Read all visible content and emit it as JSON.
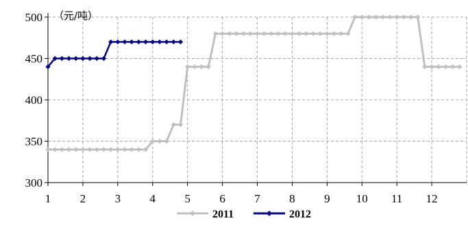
{
  "chart_data": {
    "type": "line",
    "unit_label": "（元/吨）",
    "xlabel": "",
    "ylabel": "",
    "x_ticks": [
      "1",
      "2",
      "3",
      "4",
      "5",
      "6",
      "7",
      "8",
      "9",
      "10",
      "11",
      "12"
    ],
    "y_ticks": [
      "300",
      "350",
      "400",
      "450",
      "500"
    ],
    "xlim": [
      1,
      13
    ],
    "ylim": [
      300,
      500
    ],
    "grid": true,
    "legend_position": "bottom",
    "series": [
      {
        "name": "2011",
        "color": "#c0c0c0",
        "marker": "diamond",
        "x": [
          1,
          1.2,
          1.4,
          1.6,
          1.8,
          2,
          2.2,
          2.4,
          2.6,
          2.8,
          3,
          3.2,
          3.4,
          3.6,
          3.8,
          4,
          4.2,
          4.4,
          4.6,
          4.8,
          5,
          5.2,
          5.4,
          5.6,
          5.8,
          6,
          6.2,
          6.4,
          6.6,
          6.8,
          7,
          7.2,
          7.4,
          7.6,
          7.8,
          8,
          8.2,
          8.4,
          8.6,
          8.8,
          9,
          9.2,
          9.4,
          9.6,
          9.8,
          10,
          10.2,
          10.4,
          10.6,
          10.8,
          11,
          11.2,
          11.4,
          11.6,
          11.8,
          12,
          12.2,
          12.4,
          12.6,
          12.8
        ],
        "values": [
          340,
          340,
          340,
          340,
          340,
          340,
          340,
          340,
          340,
          340,
          340,
          340,
          340,
          340,
          340,
          350,
          350,
          350,
          370,
          370,
          440,
          440,
          440,
          440,
          480,
          480,
          480,
          480,
          480,
          480,
          480,
          480,
          480,
          480,
          480,
          480,
          480,
          480,
          480,
          480,
          480,
          480,
          480,
          480,
          500,
          500,
          500,
          500,
          500,
          500,
          500,
          500,
          500,
          500,
          440,
          440,
          440,
          440,
          440,
          440
        ]
      },
      {
        "name": "2012",
        "color": "#000080",
        "marker": "diamond",
        "x": [
          1,
          1.2,
          1.4,
          1.6,
          1.8,
          2,
          2.2,
          2.4,
          2.6,
          2.8,
          3,
          3.2,
          3.4,
          3.6,
          3.8,
          4,
          4.2,
          4.4,
          4.6,
          4.8
        ],
        "values": [
          440,
          450,
          450,
          450,
          450,
          450,
          450,
          450,
          450,
          470,
          470,
          470,
          470,
          470,
          470,
          470,
          470,
          470,
          470,
          470
        ]
      }
    ]
  }
}
